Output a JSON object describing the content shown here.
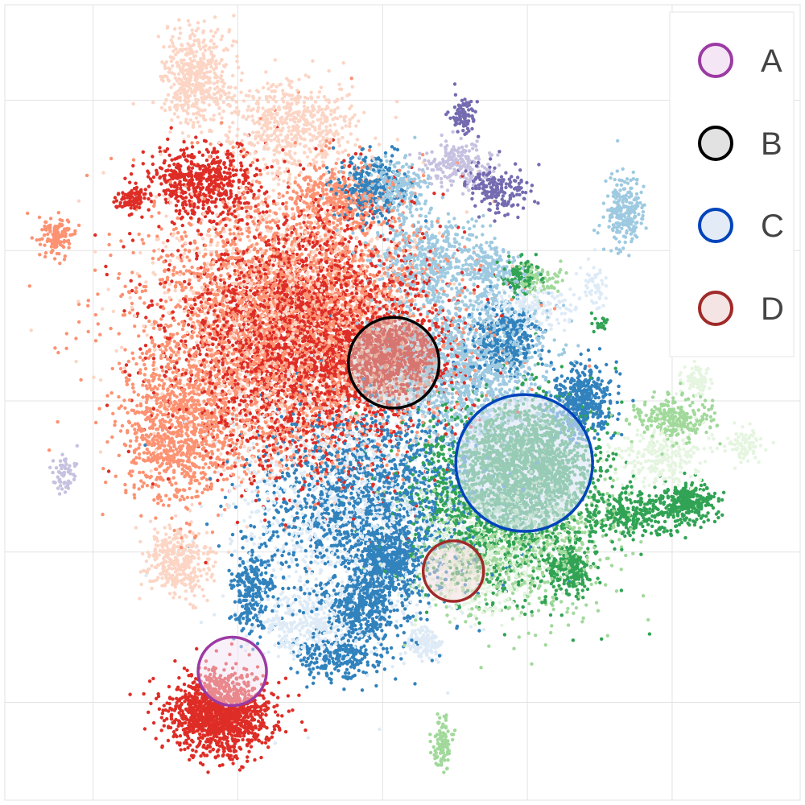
{
  "chart_data": {
    "type": "scatter",
    "title": "",
    "xlabel": "",
    "ylabel": "",
    "xlim": [
      0,
      100
    ],
    "ylim": [
      0,
      100
    ],
    "grid": true,
    "legend_position": "top-right",
    "palette": {
      "red_dark": "#de2d26",
      "red_mid": "#fc9272",
      "red_light": "#fcd5c5",
      "blue_dark": "#3182bd",
      "blue_mid": "#9ecae1",
      "blue_light": "#deebf7",
      "green_dark": "#31a354",
      "green_mid": "#a1d99b",
      "green_light": "#e5f5e0",
      "purple_dark": "#756bb1",
      "purple_light": "#c6c1e0"
    },
    "clusters": [
      {
        "color": "red_light",
        "cx": 24,
        "cy": 91,
        "sx": 2.2,
        "sy": 3.2,
        "n": 500
      },
      {
        "color": "red_dark",
        "cx": 25,
        "cy": 78,
        "sx": 3.2,
        "sy": 2.2,
        "n": 550
      },
      {
        "color": "red_dark",
        "cx": 16,
        "cy": 75.5,
        "sx": 1.0,
        "sy": 0.8,
        "n": 90
      },
      {
        "color": "red_mid",
        "cx": 6.5,
        "cy": 71,
        "sx": 1.0,
        "sy": 1.2,
        "n": 130
      },
      {
        "color": "red_light",
        "cx": 36,
        "cy": 85,
        "sx": 4.0,
        "sy": 2.8,
        "n": 550
      },
      {
        "color": "red_mid",
        "cx": 36,
        "cy": 60,
        "sx": 9.5,
        "sy": 8.5,
        "n": 3200
      },
      {
        "color": "red_dark",
        "cx": 38,
        "cy": 58,
        "sx": 8.0,
        "sy": 8.0,
        "n": 3200
      },
      {
        "color": "red_light",
        "cx": 36,
        "cy": 60,
        "sx": 8.5,
        "sy": 9.5,
        "n": 1300
      },
      {
        "color": "red_mid",
        "cx": 22,
        "cy": 47,
        "sx": 3.5,
        "sy": 5.0,
        "n": 900
      },
      {
        "color": "red_light",
        "cx": 22,
        "cy": 30,
        "sx": 2.2,
        "sy": 2.2,
        "n": 350
      },
      {
        "color": "red_dark",
        "cx": 49,
        "cy": 56,
        "sx": 3.5,
        "sy": 2.2,
        "n": 800
      },
      {
        "color": "red_mid",
        "cx": 42,
        "cy": 76,
        "sx": 3.0,
        "sy": 2.0,
        "n": 300
      },
      {
        "color": "red_dark",
        "cx": 27,
        "cy": 11,
        "sx": 3.2,
        "sy": 2.6,
        "n": 1300
      },
      {
        "color": "blue_dark",
        "cx": 46,
        "cy": 77,
        "sx": 2.2,
        "sy": 2.2,
        "n": 300
      },
      {
        "color": "blue_mid",
        "cx": 49,
        "cy": 77,
        "sx": 2.0,
        "sy": 1.8,
        "n": 250
      },
      {
        "color": "blue_mid",
        "cx": 53,
        "cy": 68,
        "sx": 3.5,
        "sy": 3.0,
        "n": 450
      },
      {
        "color": "blue_mid",
        "cx": 58,
        "cy": 55,
        "sx": 5.0,
        "sy": 5.0,
        "n": 1300
      },
      {
        "color": "blue_dark",
        "cx": 46,
        "cy": 37,
        "sx": 7.0,
        "sy": 7.0,
        "n": 1800
      },
      {
        "color": "blue_light",
        "cx": 44,
        "cy": 37,
        "sx": 7.5,
        "sy": 8.0,
        "n": 1300
      },
      {
        "color": "blue_dark",
        "cx": 48,
        "cy": 30,
        "sx": 2.0,
        "sy": 2.0,
        "n": 450
      },
      {
        "color": "blue_dark",
        "cx": 45,
        "cy": 24,
        "sx": 2.0,
        "sy": 2.0,
        "n": 350
      },
      {
        "color": "blue_dark",
        "cx": 31,
        "cy": 26,
        "sx": 1.2,
        "sy": 2.5,
        "n": 250
      },
      {
        "color": "blue_dark",
        "cx": 42,
        "cy": 18,
        "sx": 3.0,
        "sy": 1.5,
        "n": 250
      },
      {
        "color": "blue_light",
        "cx": 38,
        "cy": 22,
        "sx": 3.0,
        "sy": 2.0,
        "n": 300
      },
      {
        "color": "blue_light",
        "cx": 52.5,
        "cy": 20,
        "sx": 1.0,
        "sy": 1.0,
        "n": 120
      },
      {
        "color": "blue_dark",
        "cx": 63,
        "cy": 58,
        "sx": 2.2,
        "sy": 2.0,
        "n": 350
      },
      {
        "color": "blue_dark",
        "cx": 72.5,
        "cy": 50,
        "sx": 2.0,
        "sy": 2.2,
        "n": 450
      },
      {
        "color": "blue_mid",
        "cx": 78,
        "cy": 74,
        "sx": 1.2,
        "sy": 2.2,
        "n": 220
      },
      {
        "color": "blue_light",
        "cx": 66,
        "cy": 62,
        "sx": 3.0,
        "sy": 1.5,
        "n": 200
      },
      {
        "color": "blue_mid",
        "cx": 61,
        "cy": 67,
        "sx": 1.5,
        "sy": 1.5,
        "n": 150
      },
      {
        "color": "blue_light",
        "cx": 74,
        "cy": 65,
        "sx": 0.8,
        "sy": 1.5,
        "n": 50
      },
      {
        "color": "purple_dark",
        "cx": 57.5,
        "cy": 86,
        "sx": 0.8,
        "sy": 1.2,
        "n": 90
      },
      {
        "color": "purple_dark",
        "cx": 62,
        "cy": 77,
        "sx": 2.0,
        "sy": 1.5,
        "n": 180
      },
      {
        "color": "purple_light",
        "cx": 57,
        "cy": 80,
        "sx": 2.2,
        "sy": 1.5,
        "n": 200
      },
      {
        "color": "purple_light",
        "cx": 7.5,
        "cy": 41,
        "sx": 0.8,
        "sy": 1.2,
        "n": 60
      },
      {
        "color": "green_dark",
        "cx": 63,
        "cy": 38,
        "sx": 6.0,
        "sy": 6.0,
        "n": 1600
      },
      {
        "color": "green_dark",
        "cx": 66,
        "cy": 43,
        "sx": 4.0,
        "sy": 3.5,
        "n": 1000
      },
      {
        "color": "green_mid",
        "cx": 64,
        "cy": 33,
        "sx": 6.0,
        "sy": 5.0,
        "n": 900
      },
      {
        "color": "green_light",
        "cx": 60,
        "cy": 30,
        "sx": 4.0,
        "sy": 3.5,
        "n": 500
      },
      {
        "color": "green_dark",
        "cx": 71,
        "cy": 29,
        "sx": 1.5,
        "sy": 1.5,
        "n": 200
      },
      {
        "color": "green_dark",
        "cx": 79,
        "cy": 36,
        "sx": 3.5,
        "sy": 1.5,
        "n": 300
      },
      {
        "color": "green_dark",
        "cx": 86,
        "cy": 37.5,
        "sx": 2.0,
        "sy": 1.2,
        "n": 250
      },
      {
        "color": "green_mid",
        "cx": 84,
        "cy": 48,
        "sx": 2.5,
        "sy": 1.5,
        "n": 250
      },
      {
        "color": "green_light",
        "cx": 87,
        "cy": 53,
        "sx": 1.2,
        "sy": 1.0,
        "n": 80
      },
      {
        "color": "green_light",
        "cx": 93,
        "cy": 44.5,
        "sx": 1.2,
        "sy": 1.0,
        "n": 80
      },
      {
        "color": "green_light",
        "cx": 82,
        "cy": 43,
        "sx": 3.0,
        "sy": 2.0,
        "n": 250
      },
      {
        "color": "green_dark",
        "cx": 65,
        "cy": 66,
        "sx": 1.2,
        "sy": 1.5,
        "n": 100
      },
      {
        "color": "green_mid",
        "cx": 67,
        "cy": 65.5,
        "sx": 1.5,
        "sy": 1.0,
        "n": 80
      },
      {
        "color": "green_mid",
        "cx": 55,
        "cy": 7,
        "sx": 0.6,
        "sy": 1.5,
        "n": 100
      },
      {
        "color": "green_dark",
        "cx": 75,
        "cy": 60,
        "sx": 0.6,
        "sy": 0.5,
        "n": 20
      }
    ],
    "circles": [
      {
        "label": "A",
        "cx": 28.6,
        "cy": 16.2,
        "r": 4.3,
        "stroke": "#9c3aa3",
        "fill": "#f3e3f4",
        "fill_opacity": 0.5
      },
      {
        "label": "B",
        "cx": 48.9,
        "cy": 55.0,
        "r": 5.7,
        "stroke": "#000000",
        "fill": "#cfcfcf",
        "fill_opacity": 0.45
      },
      {
        "label": "C",
        "cx": 65.3,
        "cy": 42.4,
        "r": 8.6,
        "stroke": "#0044bb",
        "fill": "#dce6f7",
        "fill_opacity": 0.6
      },
      {
        "label": "D",
        "cx": 56.4,
        "cy": 28.8,
        "r": 3.8,
        "stroke": "#a02a28",
        "fill": "#f2dcdc",
        "fill_opacity": 0.5
      }
    ]
  },
  "legend": {
    "items": [
      {
        "label": "A",
        "stroke": "#9c3aa3",
        "fill": "#f5e6f5"
      },
      {
        "label": "B",
        "stroke": "#000000",
        "fill": "#e2e2e2"
      },
      {
        "label": "C",
        "stroke": "#0044bb",
        "fill": "#e3ebf7"
      },
      {
        "label": "D",
        "stroke": "#a02a28",
        "fill": "#f5e4e4"
      }
    ]
  }
}
